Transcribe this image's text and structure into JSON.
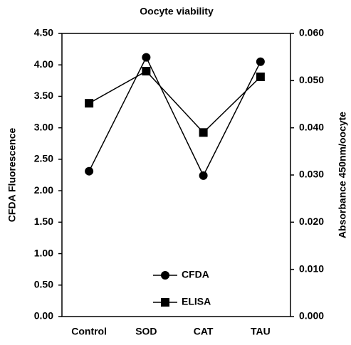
{
  "chart_data": {
    "type": "line",
    "title": "Oocyte viability",
    "categories": [
      "Control",
      "SOD",
      "CAT",
      "TAU"
    ],
    "y_label": "CFDA Fluorescence",
    "y2_label": "Absorbance 450nm/oocyte",
    "ylim": [
      0,
      4.5
    ],
    "yticks": [
      {
        "value": 0,
        "label": "0.00"
      },
      {
        "value": 0.5,
        "label": "0.50"
      },
      {
        "value": 1,
        "label": "1.00"
      },
      {
        "value": 1.5,
        "label": "1.50"
      },
      {
        "value": 2,
        "label": "2.00"
      },
      {
        "value": 2.5,
        "label": "2.50"
      },
      {
        "value": 3,
        "label": "3.00"
      },
      {
        "value": 3.5,
        "label": "3.50"
      },
      {
        "value": 4,
        "label": "4.00"
      },
      {
        "value": 4.5,
        "label": "4.50"
      }
    ],
    "y2lim": [
      0,
      0.06
    ],
    "y2ticks": [
      {
        "value": 0,
        "label": "0.000"
      },
      {
        "value": 0.01,
        "label": "0.010"
      },
      {
        "value": 0.02,
        "label": "0.020"
      },
      {
        "value": 0.03,
        "label": "0.030"
      },
      {
        "value": 0.04,
        "label": "0.040"
      },
      {
        "value": 0.05,
        "label": "0.050"
      },
      {
        "value": 0.06,
        "label": "0.060"
      }
    ],
    "series": [
      {
        "name": "CFDA",
        "color": "#000000",
        "marker": "circle",
        "values": [
          2.31,
          4.12,
          2.24,
          4.05
        ]
      },
      {
        "name": "ELISA",
        "color": "#000000",
        "marker": "square",
        "axis": "y2",
        "values": [
          0.0452,
          0.052,
          0.039,
          0.0508
        ]
      }
    ]
  }
}
